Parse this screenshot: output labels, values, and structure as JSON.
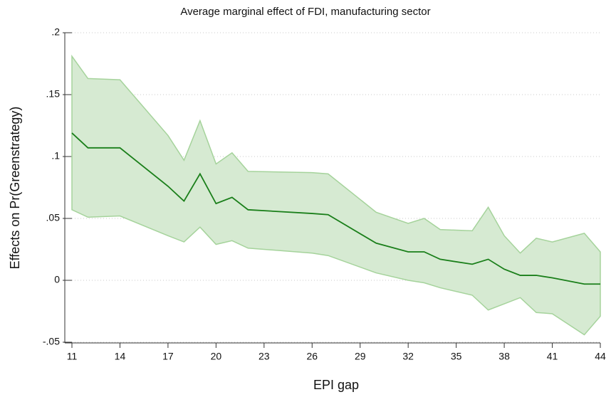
{
  "chart_data": {
    "type": "line",
    "title": "Average marginal effect of FDI, manufacturing sector",
    "xlabel": "EPI gap",
    "ylabel": "Effects on Pr(Greenstrategy)",
    "x": [
      11,
      12,
      14,
      17,
      18,
      19,
      20,
      21,
      22,
      26,
      27,
      30,
      32,
      33,
      34,
      36,
      37,
      38,
      39,
      40,
      41,
      43,
      44
    ],
    "series": [
      {
        "color": "#1a7f1a",
        "values": [
          0.119,
          0.107,
          0.107,
          0.076,
          0.064,
          0.086,
          0.062,
          0.067,
          0.057,
          0.054,
          0.053,
          0.03,
          0.023,
          0.023,
          0.017,
          0.013,
          0.017,
          0.009,
          0.004,
          0.004,
          0.002,
          -0.003,
          -0.003
        ]
      }
    ],
    "band": {
      "color": "#d6ead2",
      "edge_color": "#a5d39b",
      "lower": [
        0.057,
        0.051,
        0.052,
        0.036,
        0.031,
        0.043,
        0.029,
        0.032,
        0.026,
        0.022,
        0.02,
        0.006,
        0.0,
        -0.002,
        -0.006,
        -0.012,
        -0.024,
        -0.019,
        -0.014,
        -0.026,
        -0.027,
        -0.044,
        -0.029
      ],
      "upper": [
        0.181,
        0.163,
        0.162,
        0.117,
        0.097,
        0.129,
        0.094,
        0.103,
        0.088,
        0.087,
        0.086,
        0.055,
        0.046,
        0.05,
        0.041,
        0.04,
        0.059,
        0.036,
        0.022,
        0.034,
        0.031,
        0.038,
        0.023
      ]
    },
    "xlim": [
      11,
      44
    ],
    "xticks": [
      11,
      14,
      17,
      20,
      23,
      26,
      29,
      32,
      35,
      38,
      41,
      44
    ],
    "ylim": [
      -0.05,
      0.2
    ],
    "yticks": [
      {
        "value": -0.05,
        "label": "-.05"
      },
      0,
      {
        "value": 0.05,
        "label": ".05"
      },
      {
        "value": 0.1,
        "label": ".1"
      },
      {
        "value": 0.15,
        "label": ".15"
      },
      {
        "value": 0.2,
        "label": ".2"
      }
    ],
    "grid": true
  }
}
